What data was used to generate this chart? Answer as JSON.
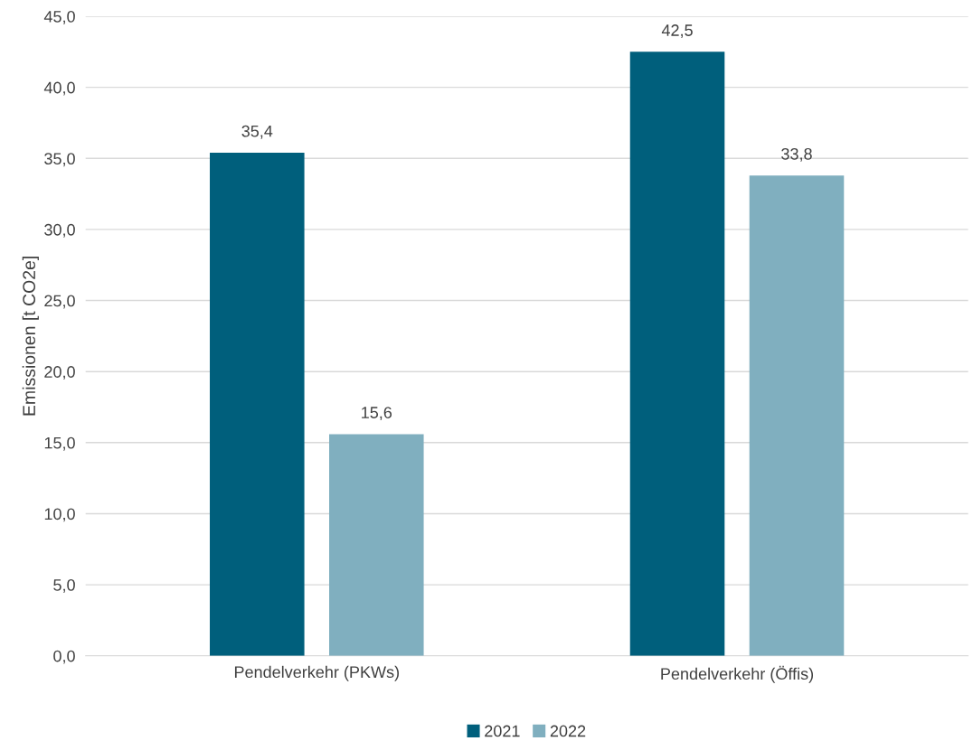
{
  "chart_data": {
    "type": "bar",
    "ylabel": "Emissionen [t CO2e]",
    "categories": [
      "Pendelverkehr (PKWs)",
      "Pendelverkehr (Öffis)"
    ],
    "series": [
      {
        "name": "2021",
        "color": "#005f7c",
        "values": [
          35.4,
          42.5
        ],
        "value_labels": [
          "35,4",
          "42,5"
        ]
      },
      {
        "name": "2022",
        "color": "#80afbf",
        "values": [
          15.6,
          33.8
        ],
        "value_labels": [
          "15,6",
          "33,8"
        ]
      }
    ],
    "ylim": [
      0,
      45
    ],
    "yticks": [
      {
        "value": 0,
        "label": "0,0"
      },
      {
        "value": 5,
        "label": "5,0"
      },
      {
        "value": 10,
        "label": "10,0"
      },
      {
        "value": 15,
        "label": "15,0"
      },
      {
        "value": 20,
        "label": "20,0"
      },
      {
        "value": 25,
        "label": "25,0"
      },
      {
        "value": 30,
        "label": "30,0"
      },
      {
        "value": 35,
        "label": "35,0"
      },
      {
        "value": 40,
        "label": "40,0"
      },
      {
        "value": 45,
        "label": "45,0"
      }
    ],
    "grid": "y",
    "legend": "bottom"
  }
}
